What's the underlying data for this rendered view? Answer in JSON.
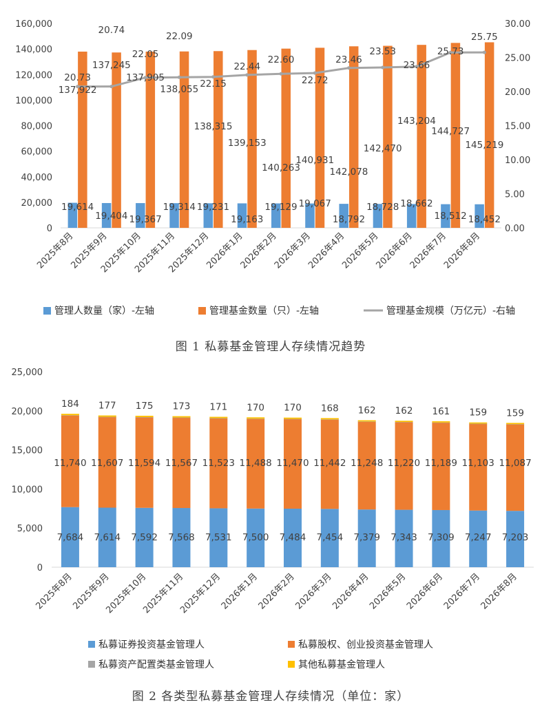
{
  "chart_data": [
    {
      "type": "bar",
      "caption": "图 1 私募基金管理人存续情况趋势",
      "categories": [
        "2025年8月",
        "2025年9月",
        "2025年10月",
        "2025年11月",
        "2025年12月",
        "2026年1月",
        "2026年2月",
        "2026年3月",
        "2026年4月",
        "2026年5月",
        "2026年6月",
        "2026年7月",
        "2026年8月"
      ],
      "left_axis": {
        "min": 0,
        "max": 160000,
        "step": 20000,
        "tick_labels": [
          "0",
          "20,000",
          "40,000",
          "60,000",
          "80,000",
          "100,000",
          "120,000",
          "140,000",
          "160,000"
        ]
      },
      "right_axis": {
        "min": 0,
        "max": 30,
        "step": 5,
        "tick_labels": [
          "0.00",
          "5.00",
          "10.00",
          "15.00",
          "20.00",
          "25.00",
          "30.00"
        ]
      },
      "series": [
        {
          "name": "管理人数量（家）-左轴",
          "kind": "bar",
          "axis": "left",
          "color": "#5b9bd5",
          "values": [
            19614,
            19404,
            19367,
            19314,
            19231,
            19163,
            19129,
            19067,
            18792,
            18728,
            18662,
            18512,
            18452
          ],
          "labels": [
            "19,614",
            "19,404",
            "19,367",
            "19,314",
            "19,231",
            "19,163",
            "19,129",
            "19,067",
            "18,792",
            "18,728",
            "18,662",
            "18,512",
            "18,452"
          ]
        },
        {
          "name": "管理基金数量（只）-左轴",
          "kind": "bar",
          "axis": "left",
          "color": "#ed7d31",
          "values": [
            137922,
            137245,
            137905,
            138055,
            138315,
            139153,
            140263,
            140931,
            142078,
            142470,
            143204,
            144727,
            145219
          ],
          "labels": [
            "137,922",
            "137,245",
            "137,905",
            "138,055",
            "138,315",
            "139,153",
            "140,263",
            "140,931",
            "142,078",
            "142,470",
            "143,204",
            "144,727",
            "145,219"
          ]
        },
        {
          "name": "管理基金规模（万亿元）-右轴",
          "kind": "line",
          "axis": "right",
          "color": "#a5a5a5",
          "values": [
            20.73,
            20.74,
            22.05,
            22.09,
            22.15,
            22.44,
            22.6,
            22.72,
            23.46,
            23.53,
            23.66,
            25.73,
            25.75
          ],
          "labels": [
            "20.73",
            "20.74",
            "22.05",
            "22.09",
            "22.15",
            "22.44",
            "22.60",
            "22.72",
            "23.46",
            "23.53",
            "23.66",
            "25.73",
            "25.75"
          ]
        }
      ],
      "legend_position": "bottom"
    },
    {
      "type": "bar",
      "stacked": true,
      "caption": "图 2 各类型私募基金管理人存续情况（单位：家）",
      "categories": [
        "2025年8月",
        "2025年9月",
        "2025年10月",
        "2025年11月",
        "2025年12月",
        "2026年1月",
        "2026年2月",
        "2026年3月",
        "2026年4月",
        "2026年5月",
        "2026年6月",
        "2026年7月",
        "2026年8月"
      ],
      "axis": {
        "min": 0,
        "max": 25000,
        "step": 5000,
        "tick_labels": [
          "0",
          "5,000",
          "10,000",
          "15,000",
          "20,000",
          "25,000"
        ]
      },
      "series": [
        {
          "name": "私募证券投资基金管理人",
          "color": "#5b9bd5",
          "values": [
            7684,
            7614,
            7592,
            7568,
            7531,
            7500,
            7484,
            7454,
            7379,
            7343,
            7309,
            7247,
            7203
          ],
          "labels": [
            "7,684",
            "7,614",
            "7,592",
            "7,568",
            "7,531",
            "7,500",
            "7,484",
            "7,454",
            "7,379",
            "7,343",
            "7,309",
            "7,247",
            "7,203"
          ]
        },
        {
          "name": "私募股权、创业投资基金管理人",
          "color": "#ed7d31",
          "values": [
            11740,
            11607,
            11594,
            11567,
            11523,
            11488,
            11470,
            11442,
            11248,
            11220,
            11189,
            11103,
            11087
          ],
          "labels": [
            "11,740",
            "11,607",
            "11,594",
            "11,567",
            "11,523",
            "11,488",
            "11,470",
            "11,442",
            "11,248",
            "11,220",
            "11,189",
            "11,103",
            "11,087"
          ]
        },
        {
          "name": "私募资产配置类基金管理人",
          "color": "#a5a5a5",
          "values": [
            6,
            6,
            6,
            6,
            6,
            5,
            5,
            3,
            3,
            3,
            3,
            3,
            3
          ]
        },
        {
          "name": "其他私募基金管理人",
          "color": "#ffc000",
          "values": [
            184,
            177,
            175,
            173,
            171,
            170,
            170,
            168,
            162,
            162,
            161,
            159,
            159
          ],
          "labels": [
            "184",
            "177",
            "175",
            "173",
            "171",
            "170",
            "170",
            "168",
            "162",
            "162",
            "161",
            "159",
            "159"
          ]
        }
      ],
      "legend_position": "bottom"
    }
  ]
}
